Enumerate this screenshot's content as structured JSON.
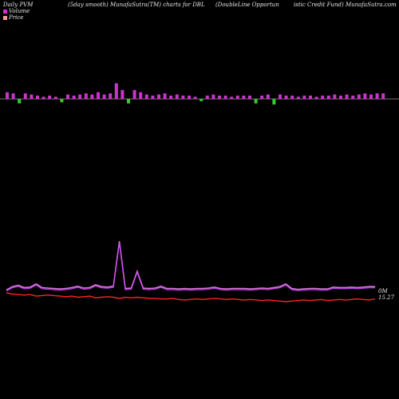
{
  "header": {
    "left": "Daily PVM",
    "center": "(5day smooth) MunafaSutra(TM) charts for DBL",
    "right_a": "(DoubleLine  Opportun",
    "right_b": "istic Credit Fund) MunafaSutra.com"
  },
  "legend": {
    "volume_label": "Volume",
    "price_label": "Price"
  },
  "end_labels": {
    "volume": "0M",
    "price": "15.27"
  },
  "colors": {
    "background": "#000000",
    "volume_bar": "#cc33cc",
    "volume_bar_down": "#33cc33",
    "volume_line": "#cc44ff",
    "price_line": "#ff2222",
    "smooth_line": "#ff88ff",
    "axis": "#999999",
    "volume_swatch": "#cc33cc",
    "price_swatch": "#ff9999"
  },
  "chart_data": {
    "type": "line",
    "title": "(5day smooth) MunafaSutra(TM) charts for DBL",
    "bars": {
      "values": [
        6,
        5,
        -4,
        5,
        4,
        3,
        2,
        3,
        2,
        -3,
        4,
        3,
        4,
        5,
        4,
        6,
        4,
        5,
        14,
        8,
        -4,
        8,
        6,
        4,
        3,
        4,
        5,
        3,
        4,
        3,
        3,
        2,
        -2,
        3,
        4,
        3,
        3,
        2,
        3,
        3,
        3,
        -4,
        3,
        4,
        -5,
        4,
        3,
        3,
        2,
        3,
        3,
        2,
        3,
        3,
        4,
        3,
        4,
        3,
        4,
        5,
        4,
        5,
        5
      ]
    },
    "series": [
      {
        "name": "Volume",
        "values": [
          1.5,
          2.2,
          2.5,
          2.0,
          2.1,
          2.8,
          2.0,
          1.9,
          1.8,
          1.7,
          1.8,
          2.0,
          2.3,
          1.9,
          2.0,
          2.6,
          2.2,
          2.1,
          2.3,
          12.0,
          1.8,
          1.9,
          5.5,
          1.9,
          1.8,
          1.9,
          2.3,
          1.8,
          1.8,
          1.7,
          1.8,
          1.7,
          1.8,
          1.8,
          1.9,
          2.1,
          1.8,
          1.7,
          1.8,
          1.8,
          1.8,
          1.7,
          1.8,
          1.9,
          1.8,
          2.0,
          2.2,
          2.8,
          1.8,
          1.6,
          1.7,
          1.8,
          1.8,
          1.7,
          1.7,
          2.1,
          2.0,
          2.0,
          2.1,
          2.0,
          2.1,
          2.2,
          2.2
        ]
      },
      {
        "name": "Price",
        "values": [
          15.38,
          15.36,
          15.35,
          15.34,
          15.35,
          15.32,
          15.33,
          15.34,
          15.33,
          15.32,
          15.31,
          15.32,
          15.3,
          15.31,
          15.32,
          15.29,
          15.3,
          15.31,
          15.3,
          15.28,
          15.3,
          15.29,
          15.3,
          15.29,
          15.28,
          15.28,
          15.27,
          15.27,
          15.28,
          15.26,
          15.25,
          15.26,
          15.27,
          15.26,
          15.27,
          15.28,
          15.27,
          15.26,
          15.27,
          15.26,
          15.25,
          15.26,
          15.25,
          15.24,
          15.25,
          15.24,
          15.23,
          15.22,
          15.23,
          15.24,
          15.25,
          15.24,
          15.25,
          15.26,
          15.24,
          15.25,
          15.26,
          15.25,
          15.26,
          15.27,
          15.26,
          15.25,
          15.27
        ]
      }
    ]
  }
}
